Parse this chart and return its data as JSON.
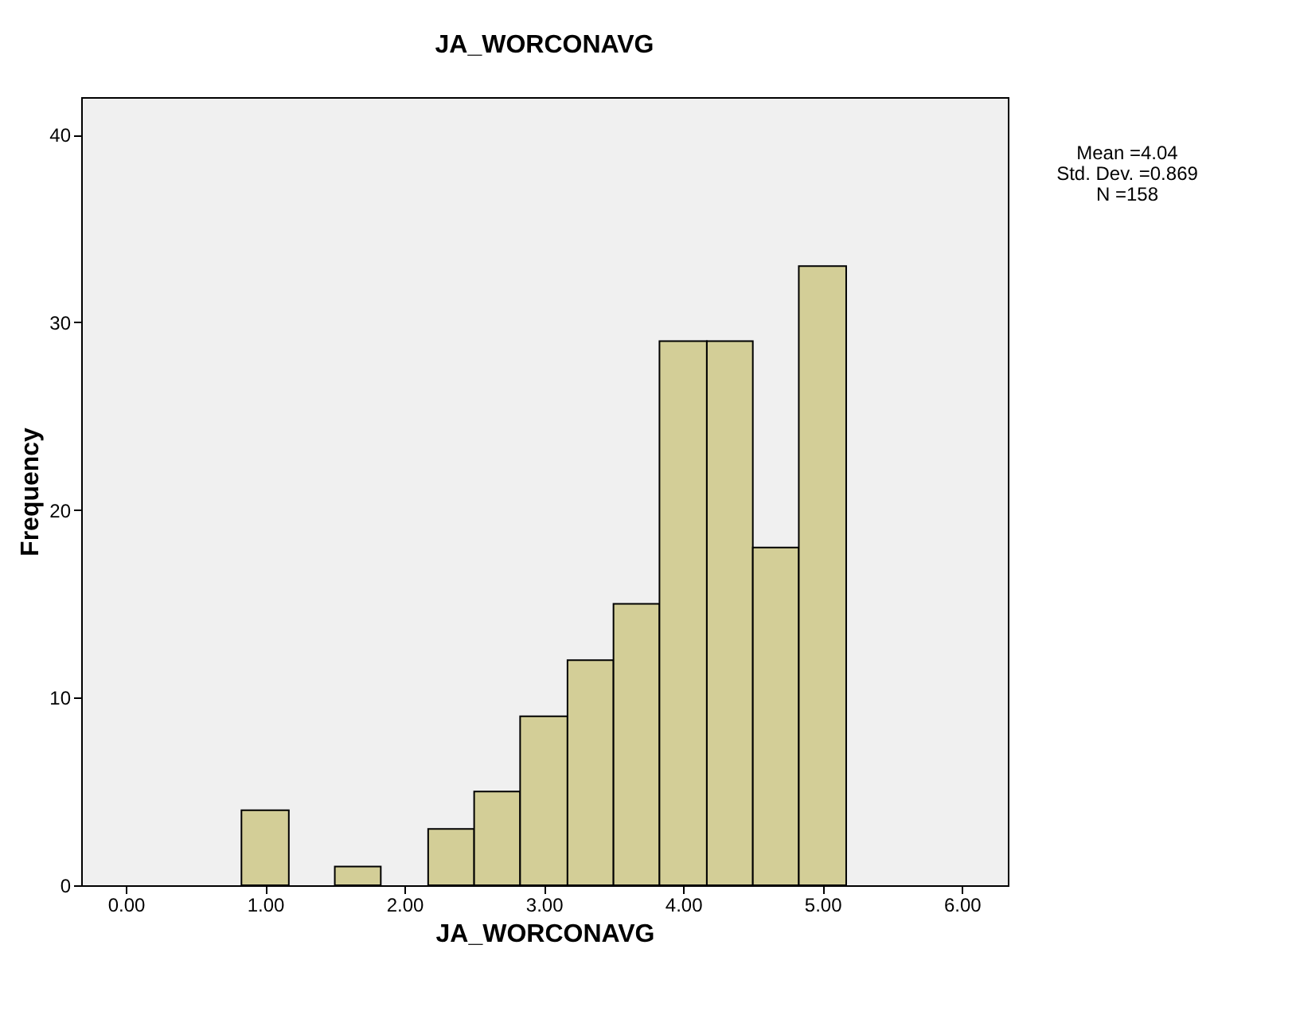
{
  "chart_data": {
    "type": "histogram",
    "title": "JA_WORCONAVG",
    "xlabel": "JA_WORCONAVG",
    "ylabel": "Frequency",
    "bins": [
      0.83,
      1.17,
      1.5,
      1.83,
      2.17,
      2.5,
      2.83,
      3.17,
      3.5,
      3.83,
      4.17,
      4.5,
      4.83,
      5.17
    ],
    "values": [
      4,
      0,
      1,
      0,
      3,
      5,
      9,
      12,
      15,
      29,
      29,
      18,
      33
    ],
    "color": "#d3ce97",
    "xlim": [
      -0.32,
      6.33
    ],
    "xticks": [
      {
        "value": 0,
        "label": "0.00"
      },
      {
        "value": 1,
        "label": "1.00"
      },
      {
        "value": 2,
        "label": "2.00"
      },
      {
        "value": 3,
        "label": "3.00"
      },
      {
        "value": 4,
        "label": "4.00"
      },
      {
        "value": 5,
        "label": "5.00"
      },
      {
        "value": 6,
        "label": "6.00"
      }
    ],
    "ylim": [
      0,
      42
    ],
    "yticks": [
      0,
      10,
      20,
      30,
      40
    ],
    "grid": false,
    "annotations": [
      "Mean =4.04",
      "Std. Dev. =0.869",
      "N =158"
    ]
  }
}
